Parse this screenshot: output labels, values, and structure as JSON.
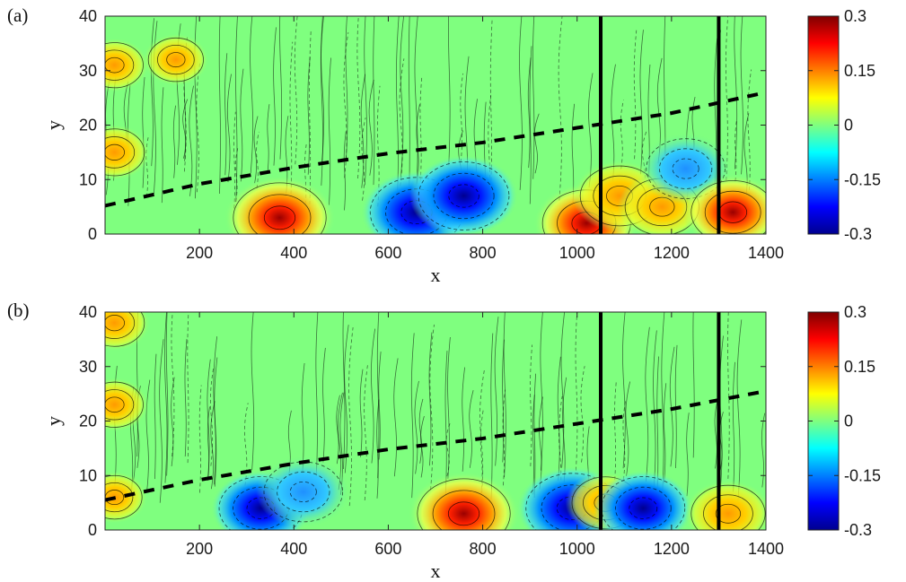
{
  "figure": {
    "colorscale": [
      "#00008f",
      "#0000ff",
      "#007fff",
      "#00ffff",
      "#7fff7f",
      "#ffff00",
      "#ff7f00",
      "#ff0000",
      "#7f0000"
    ]
  },
  "chart_data": [
    {
      "type": "heatmap",
      "panel_label": "(a)",
      "title": "",
      "xlabel": "x",
      "ylabel": "y",
      "xlim": [
        0,
        1400
      ],
      "ylim": [
        0,
        40
      ],
      "xticks": [
        200,
        400,
        600,
        800,
        1000,
        1200,
        1400
      ],
      "yticks": [
        0,
        10,
        20,
        30,
        40
      ],
      "colorbar": {
        "range": [
          -0.3,
          0.3
        ],
        "ticks": [
          0.3,
          0.15,
          0,
          -0.15,
          -0.3
        ],
        "tick_labels": [
          "0.3",
          "0.15",
          "0",
          "-0.15",
          "-0.3"
        ]
      },
      "vertical_lines_x": [
        1050,
        1300
      ],
      "dashed_boundary": {
        "x": [
          0,
          200,
          400,
          600,
          800,
          1000,
          1200,
          1400
        ],
        "y": [
          5.2,
          9.2,
          12.2,
          14.8,
          16.8,
          19.5,
          22.2,
          26
        ]
      },
      "features": [
        {
          "x": 370,
          "y": 3,
          "value": 0.26
        },
        {
          "x": 660,
          "y": 4,
          "value": -0.26
        },
        {
          "x": 760,
          "y": 7,
          "value": -0.25
        },
        {
          "x": 1020,
          "y": 2,
          "value": 0.24
        },
        {
          "x": 1090,
          "y": 7,
          "value": 0.2
        },
        {
          "x": 1180,
          "y": 5,
          "value": 0.18
        },
        {
          "x": 1230,
          "y": 12,
          "value": -0.2
        },
        {
          "x": 1330,
          "y": 4,
          "value": 0.22
        },
        {
          "x": 20,
          "y": 15,
          "value": 0.12
        },
        {
          "x": 20,
          "y": 31,
          "value": 0.11
        },
        {
          "x": 150,
          "y": 32,
          "value": 0.1
        }
      ]
    },
    {
      "type": "heatmap",
      "panel_label": "(b)",
      "title": "",
      "xlabel": "x",
      "ylabel": "y",
      "xlim": [
        0,
        1400
      ],
      "ylim": [
        0,
        40
      ],
      "xticks": [
        200,
        400,
        600,
        800,
        1000,
        1200,
        1400
      ],
      "yticks": [
        0,
        10,
        20,
        30,
        40
      ],
      "colorbar": {
        "range": [
          -0.3,
          0.3
        ],
        "ticks": [
          0.3,
          0.15,
          0,
          -0.15,
          -0.3
        ],
        "tick_labels": [
          "0.3",
          "0.15",
          "0",
          "-0.15",
          "-0.3"
        ]
      },
      "vertical_lines_x": [
        1050,
        1300
      ],
      "dashed_boundary": {
        "x": [
          0,
          200,
          400,
          600,
          800,
          1000,
          1200,
          1400
        ],
        "y": [
          5.5,
          9.2,
          12.2,
          14.8,
          16.8,
          19.5,
          22.2,
          25.5
        ]
      },
      "features": [
        {
          "x": 330,
          "y": 4,
          "value": -0.22
        },
        {
          "x": 420,
          "y": 7,
          "value": -0.2
        },
        {
          "x": 760,
          "y": 3,
          "value": 0.26
        },
        {
          "x": 990,
          "y": 4,
          "value": -0.26
        },
        {
          "x": 1060,
          "y": 5,
          "value": 0.15
        },
        {
          "x": 1140,
          "y": 4,
          "value": -0.22
        },
        {
          "x": 1320,
          "y": 3,
          "value": 0.18
        },
        {
          "x": 20,
          "y": 6,
          "value": 0.1
        },
        {
          "x": 20,
          "y": 23,
          "value": 0.11
        },
        {
          "x": 20,
          "y": 38,
          "value": 0.12
        }
      ]
    }
  ]
}
